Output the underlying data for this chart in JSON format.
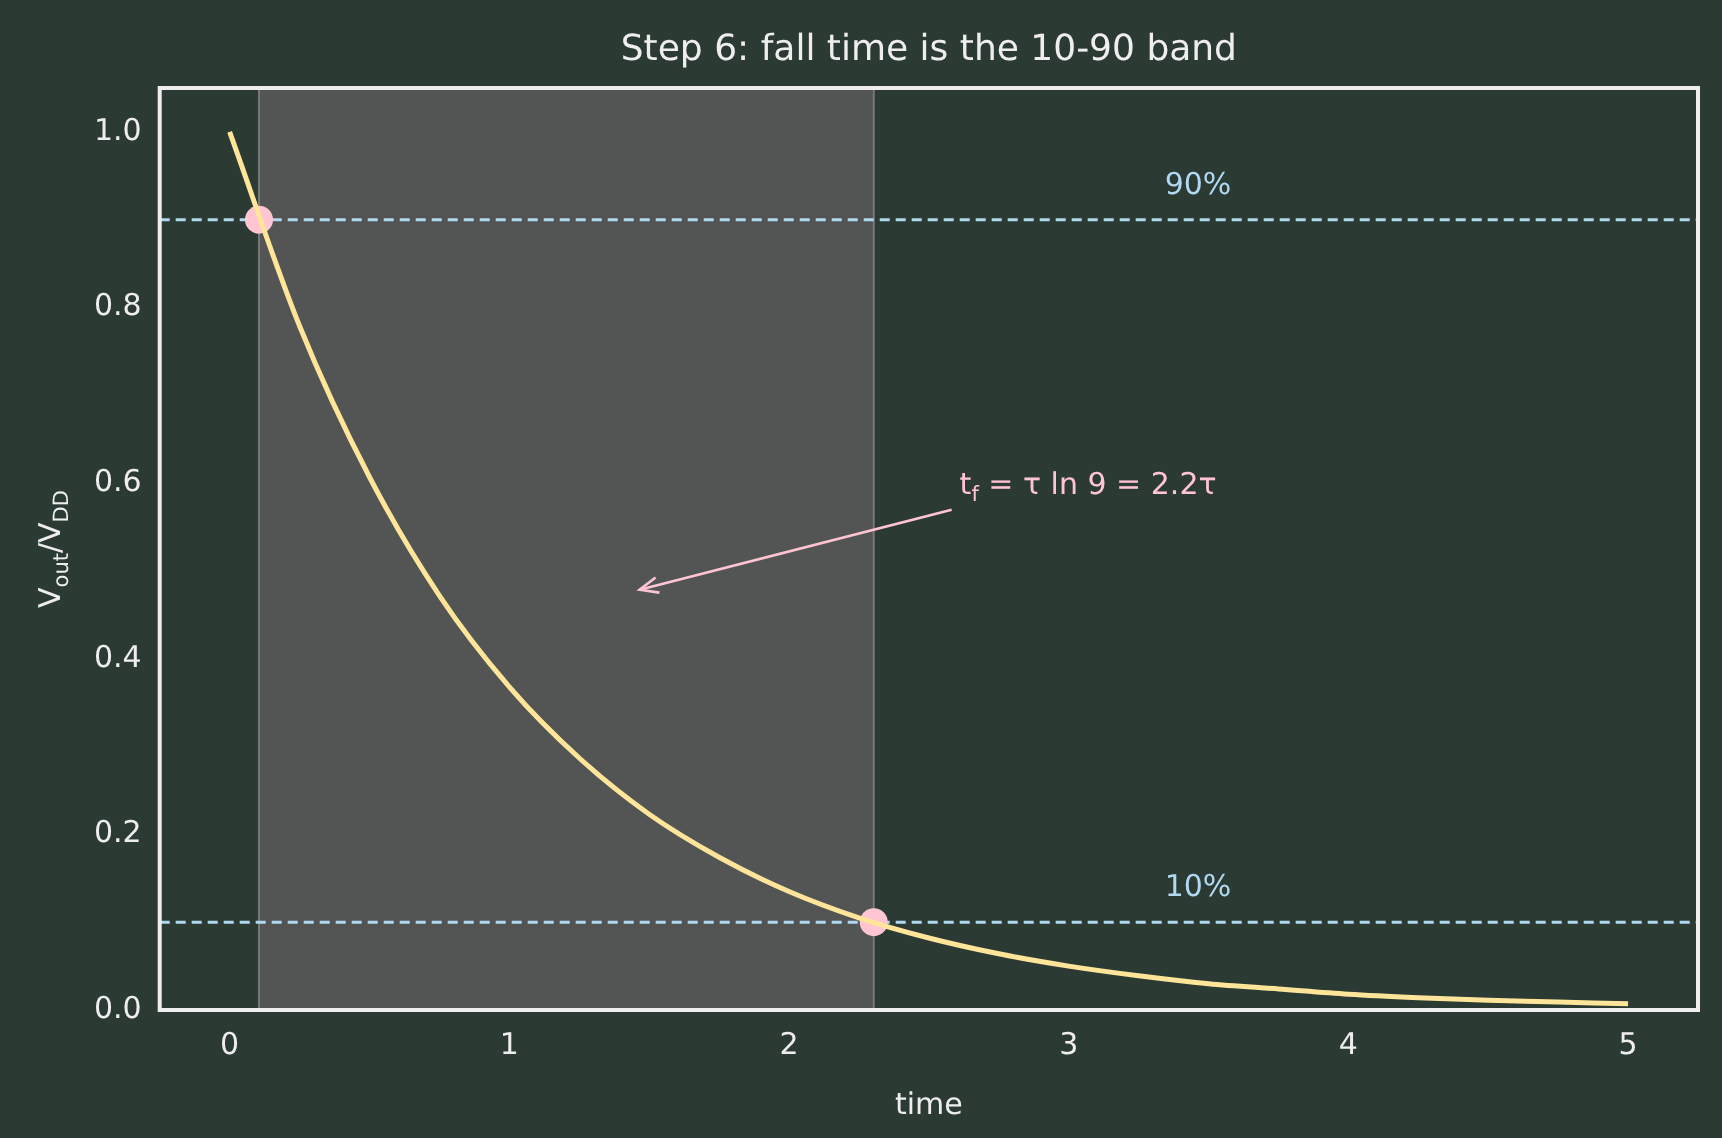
{
  "chart_data": {
    "type": "line",
    "title": "Step 6: fall time is the 10-90 band",
    "xlabel": "time",
    "ylabel": "V$_{out}$/V$_{DD}$",
    "series": [
      {
        "color": "#ffe599",
        "x": [
          0,
          0.25,
          0.5,
          0.75,
          1,
          1.25,
          1.5,
          1.75,
          2,
          2.25,
          2.5,
          2.75,
          3,
          3.25,
          3.5,
          3.75,
          4,
          4.25,
          4.5,
          4.75,
          5
        ],
        "values": [
          1,
          0.779,
          0.607,
          0.472,
          0.368,
          0.287,
          0.223,
          0.174,
          0.135,
          0.105,
          0.082,
          0.064,
          0.05,
          0.039,
          0.03,
          0.024,
          0.018,
          0.014,
          0.011,
          0.009,
          0.007
        ]
      },
      {
        "type": "scatter",
        "marker": "circle",
        "color": "#ffc5d3",
        "x": [
          0.105,
          2.303
        ],
        "values": [
          0.9,
          0.1
        ]
      }
    ],
    "xlim": [
      -0.25,
      5.25
    ],
    "ylim": [
      0,
      1.05
    ],
    "xticks": [
      0,
      1,
      2,
      3,
      4,
      5
    ],
    "yticks": [
      {
        "value": 0,
        "label": "0.0"
      },
      {
        "value": 0.2,
        "label": "0.2"
      },
      {
        "value": 0.4,
        "label": "0.4"
      },
      {
        "value": 0.6,
        "label": "0.6"
      },
      {
        "value": 0.8,
        "label": "0.8"
      },
      {
        "value": 1,
        "label": "1.0"
      }
    ],
    "ref_lines": [
      {
        "axis": "y",
        "value": 0.9,
        "label": "90%",
        "color": "#b0d8f0",
        "line_style": "dashed"
      },
      {
        "axis": "y",
        "value": 0.1,
        "label": "10%",
        "color": "#b0d8f0",
        "line_style": "dashed"
      }
    ],
    "bands": [
      {
        "axis": "x",
        "from": 0.105,
        "to": 2.303,
        "color": "#5a5a5a"
      }
    ],
    "annotations": [
      "t$_{f}$ = τ ln 9 = 2.2τ"
    ],
    "grid": false,
    "legend": false,
    "line_style": "solid"
  }
}
